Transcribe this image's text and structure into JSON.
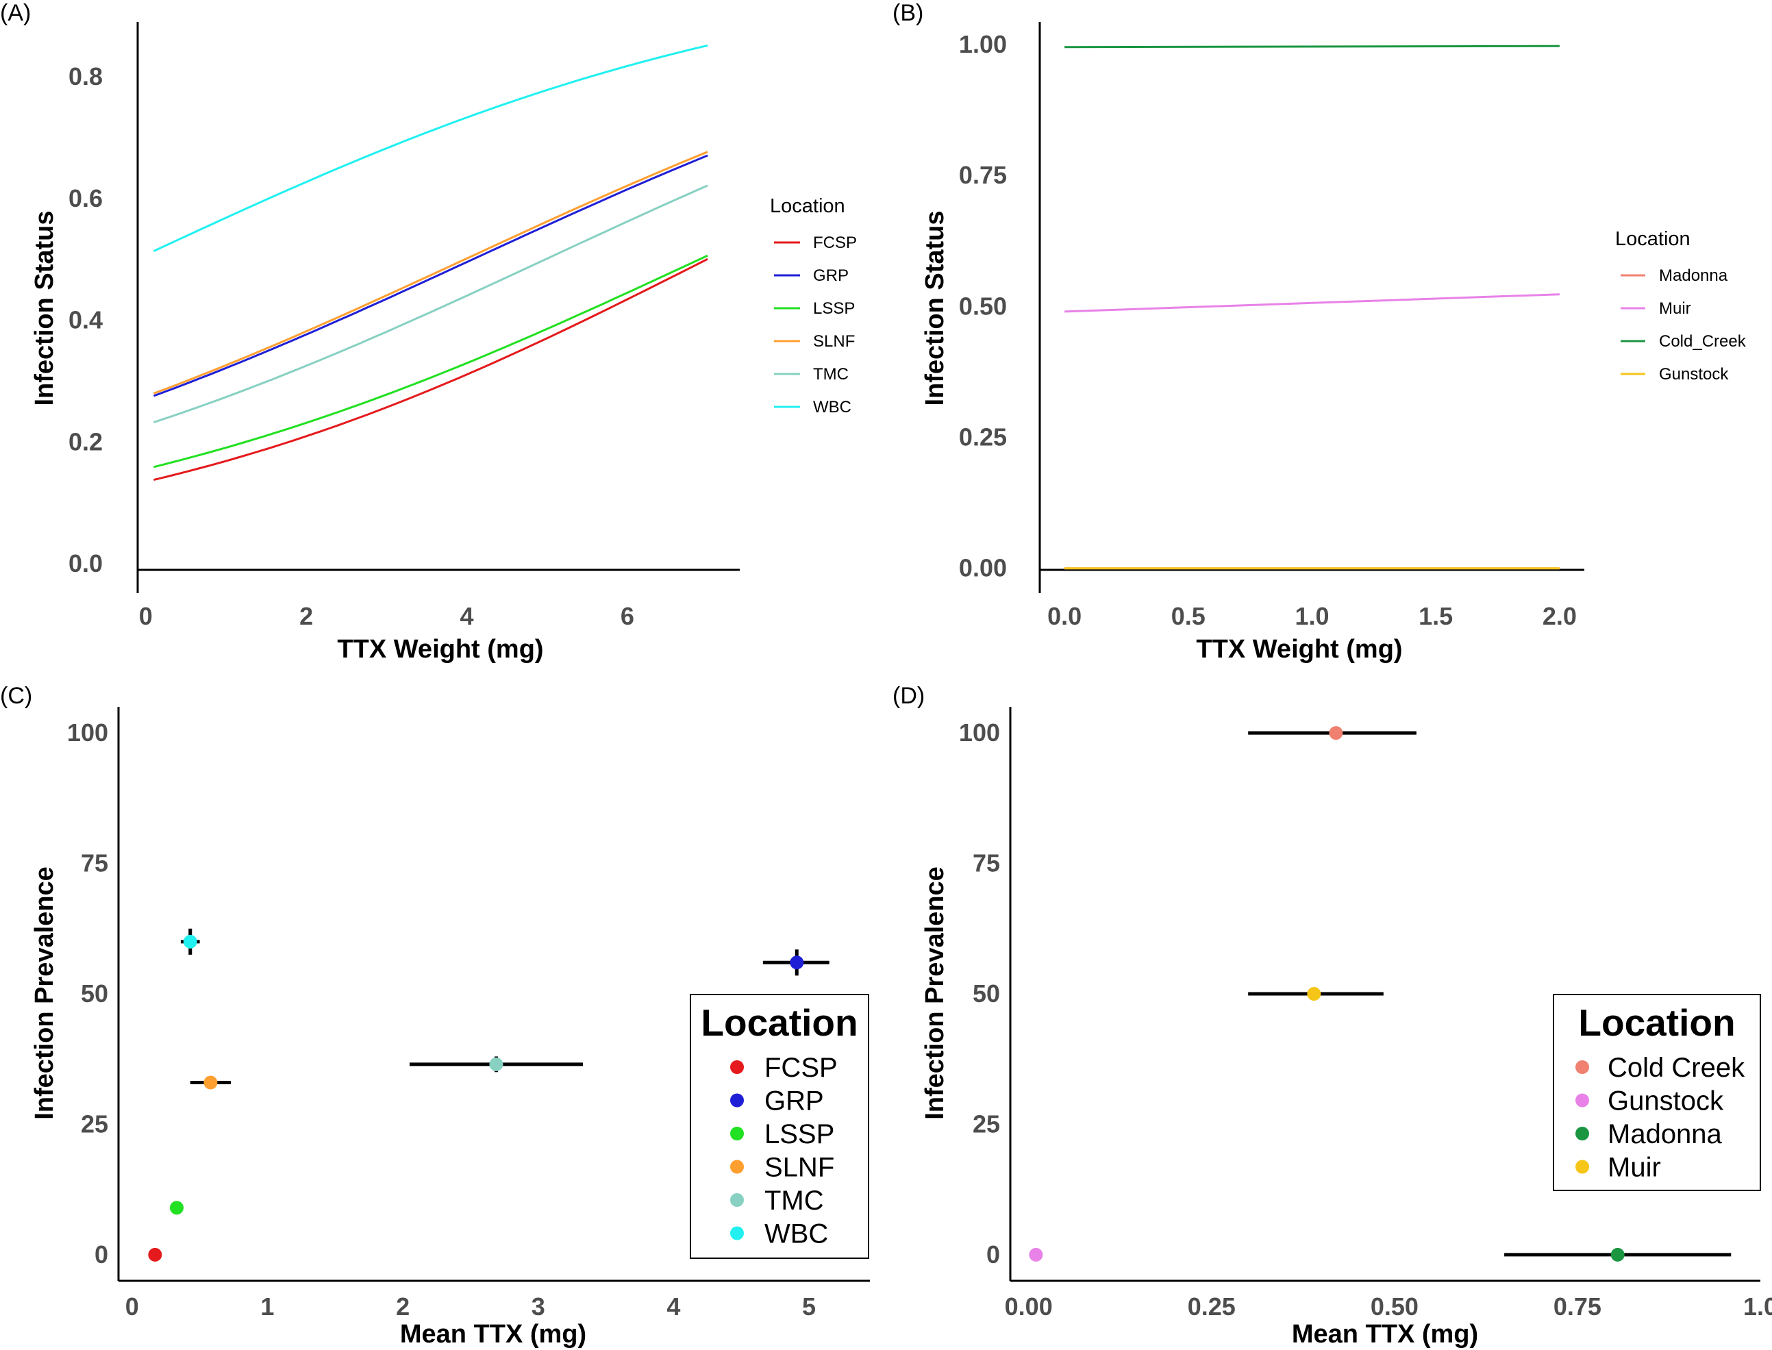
{
  "chart_data": [
    {
      "panel": "(A)",
      "type": "line",
      "xlabel": "TTX Weight (mg)",
      "ylabel": "Infection Status",
      "xlim": [
        -0.1,
        7.4
      ],
      "ylim": [
        -0.01,
        0.89
      ],
      "x_ticks": [
        0,
        2,
        4,
        6
      ],
      "x_tick_labels": [
        "0",
        "2",
        "4",
        "6"
      ],
      "y_ticks": [
        0,
        0.2,
        0.4,
        0.6,
        0.8
      ],
      "y_tick_labels": [
        "0.0",
        "0.2",
        "0.4",
        "0.6",
        "0.8"
      ],
      "legend": {
        "title": "Location",
        "position": "right"
      },
      "series": [
        {
          "name": "FCSP",
          "color": "#e41a1c",
          "x": [
            0.1,
            7.0
          ],
          "logistic": [
            -1.86,
            0.266
          ]
        },
        {
          "name": "GRP",
          "color": "#1f1fd6",
          "x": [
            0.1,
            7.0
          ],
          "logistic": [
            -0.99,
            0.243
          ]
        },
        {
          "name": "LSSP",
          "color": "#22e022",
          "x": [
            0.1,
            7.0
          ],
          "logistic": [
            -1.69,
            0.245
          ]
        },
        {
          "name": "SLNF",
          "color": "#ff9f30",
          "x": [
            0.1,
            7.0
          ],
          "logistic": [
            -0.97,
            0.244
          ]
        },
        {
          "name": "TMC",
          "color": "#88d1c2",
          "x": [
            0.1,
            7.0
          ],
          "logistic": [
            -1.22,
            0.245
          ]
        },
        {
          "name": "WBC",
          "color": "#22f0f0",
          "x": [
            0.1,
            7.0
          ],
          "logistic": [
            0.03,
            0.245
          ]
        }
      ]
    },
    {
      "panel": "(B)",
      "type": "line",
      "xlabel": "TTX Weight (mg)",
      "ylabel": "Infection Status",
      "xlim": [
        -0.1,
        2.1
      ],
      "ylim": [
        -0.003,
        1.043
      ],
      "x_ticks": [
        0,
        0.5,
        1.0,
        1.5,
        2.0
      ],
      "x_tick_labels": [
        "0.0",
        "0.5",
        "1.0",
        "1.5",
        "2.0"
      ],
      "y_ticks": [
        0,
        0.25,
        0.5,
        0.75,
        1.0
      ],
      "y_tick_labels": [
        "0.00",
        "0.25",
        "0.50",
        "0.75",
        "1.00"
      ],
      "legend": {
        "title": "Location",
        "position": "right"
      },
      "series": [
        {
          "name": "Madonna",
          "color": "#f08070",
          "x": [
            0.0,
            2.0
          ],
          "y": [
            0.0,
            0.0
          ]
        },
        {
          "name": "Muir",
          "color": "#e882e8",
          "x": [
            0.0,
            2.0
          ],
          "y": [
            0.49,
            0.523
          ]
        },
        {
          "name": "Cold_Creek",
          "color": "#1a9641",
          "x": [
            0.0,
            2.0
          ],
          "y": [
            0.995,
            0.997
          ]
        },
        {
          "name": "Gunstock",
          "color": "#f5c518",
          "x": [
            0.0,
            2.0
          ],
          "y": [
            0.0,
            0.0
          ]
        }
      ]
    },
    {
      "panel": "(C)",
      "type": "scatter",
      "xlabel": "Mean TTX (mg)",
      "ylabel": "Infection Prevalence",
      "xlim": [
        -0.1,
        5.45
      ],
      "ylim": [
        -5,
        105
      ],
      "x_ticks": [
        0,
        1,
        2,
        3,
        4,
        5
      ],
      "x_tick_labels": [
        "0",
        "1",
        "2",
        "3",
        "4",
        "5"
      ],
      "y_ticks": [
        0,
        25,
        50,
        75,
        100
      ],
      "y_tick_labels": [
        "0",
        "25",
        "50",
        "75",
        "100"
      ],
      "legend": {
        "title": "Location",
        "position": "right"
      },
      "points": [
        {
          "name": "FCSP",
          "color": "#e41a1c",
          "x": 0.17,
          "y": 0,
          "xerr": [
            0.17,
            0.17
          ],
          "yerr": [
            0,
            0
          ]
        },
        {
          "name": "GRP",
          "color": "#1f1fd6",
          "x": 4.91,
          "y": 56,
          "xerr": [
            4.66,
            5.15
          ],
          "yerr": [
            53.5,
            58.5
          ]
        },
        {
          "name": "LSSP",
          "color": "#22e022",
          "x": 0.33,
          "y": 9,
          "xerr": [
            0.3,
            0.36
          ],
          "yerr": [
            9,
            9
          ]
        },
        {
          "name": "SLNF",
          "color": "#ff9f30",
          "x": 0.58,
          "y": 33,
          "xerr": [
            0.43,
            0.73
          ],
          "yerr": [
            33,
            33
          ]
        },
        {
          "name": "TMC",
          "color": "#88d1c2",
          "x": 2.69,
          "y": 36.5,
          "xerr": [
            2.05,
            3.33
          ],
          "yerr": [
            35,
            38
          ]
        },
        {
          "name": "WBC",
          "color": "#22f0f0",
          "x": 0.43,
          "y": 60,
          "xerr": [
            0.36,
            0.5
          ],
          "yerr": [
            57.5,
            62.5
          ]
        }
      ]
    },
    {
      "panel": "(D)",
      "type": "scatter",
      "xlabel": "Mean TTX (mg)",
      "ylabel": "Infection Prevalence",
      "xlim": [
        -0.025,
        1.0
      ],
      "ylim": [
        -5,
        105
      ],
      "x_ticks": [
        0,
        0.25,
        0.5,
        0.75,
        1.0
      ],
      "x_tick_labels": [
        "0.00",
        "0.25",
        "0.50",
        "0.75",
        "1.0"
      ],
      "y_ticks": [
        0,
        25,
        50,
        75,
        100
      ],
      "y_tick_labels": [
        "0",
        "25",
        "50",
        "75",
        "100"
      ],
      "legend": {
        "title": "Location",
        "position": "right"
      },
      "points": [
        {
          "name": "Cold Creek",
          "color": "#f08070",
          "x": 0.42,
          "y": 100,
          "xerr": [
            0.3,
            0.53
          ],
          "yerr": [
            100,
            100
          ]
        },
        {
          "name": "Gunstock",
          "color": "#e882e8",
          "x": 0.01,
          "y": 0,
          "xerr": [
            0.01,
            0.01
          ],
          "yerr": [
            0,
            0
          ]
        },
        {
          "name": "Madonna",
          "color": "#1a9641",
          "x": 0.805,
          "y": 0,
          "xerr": [
            0.65,
            0.96
          ],
          "yerr": [
            0,
            0
          ]
        },
        {
          "name": "Muir",
          "color": "#f5c518",
          "x": 0.39,
          "y": 50,
          "xerr": [
            0.3,
            0.485
          ],
          "yerr": [
            50,
            50
          ]
        }
      ]
    }
  ]
}
